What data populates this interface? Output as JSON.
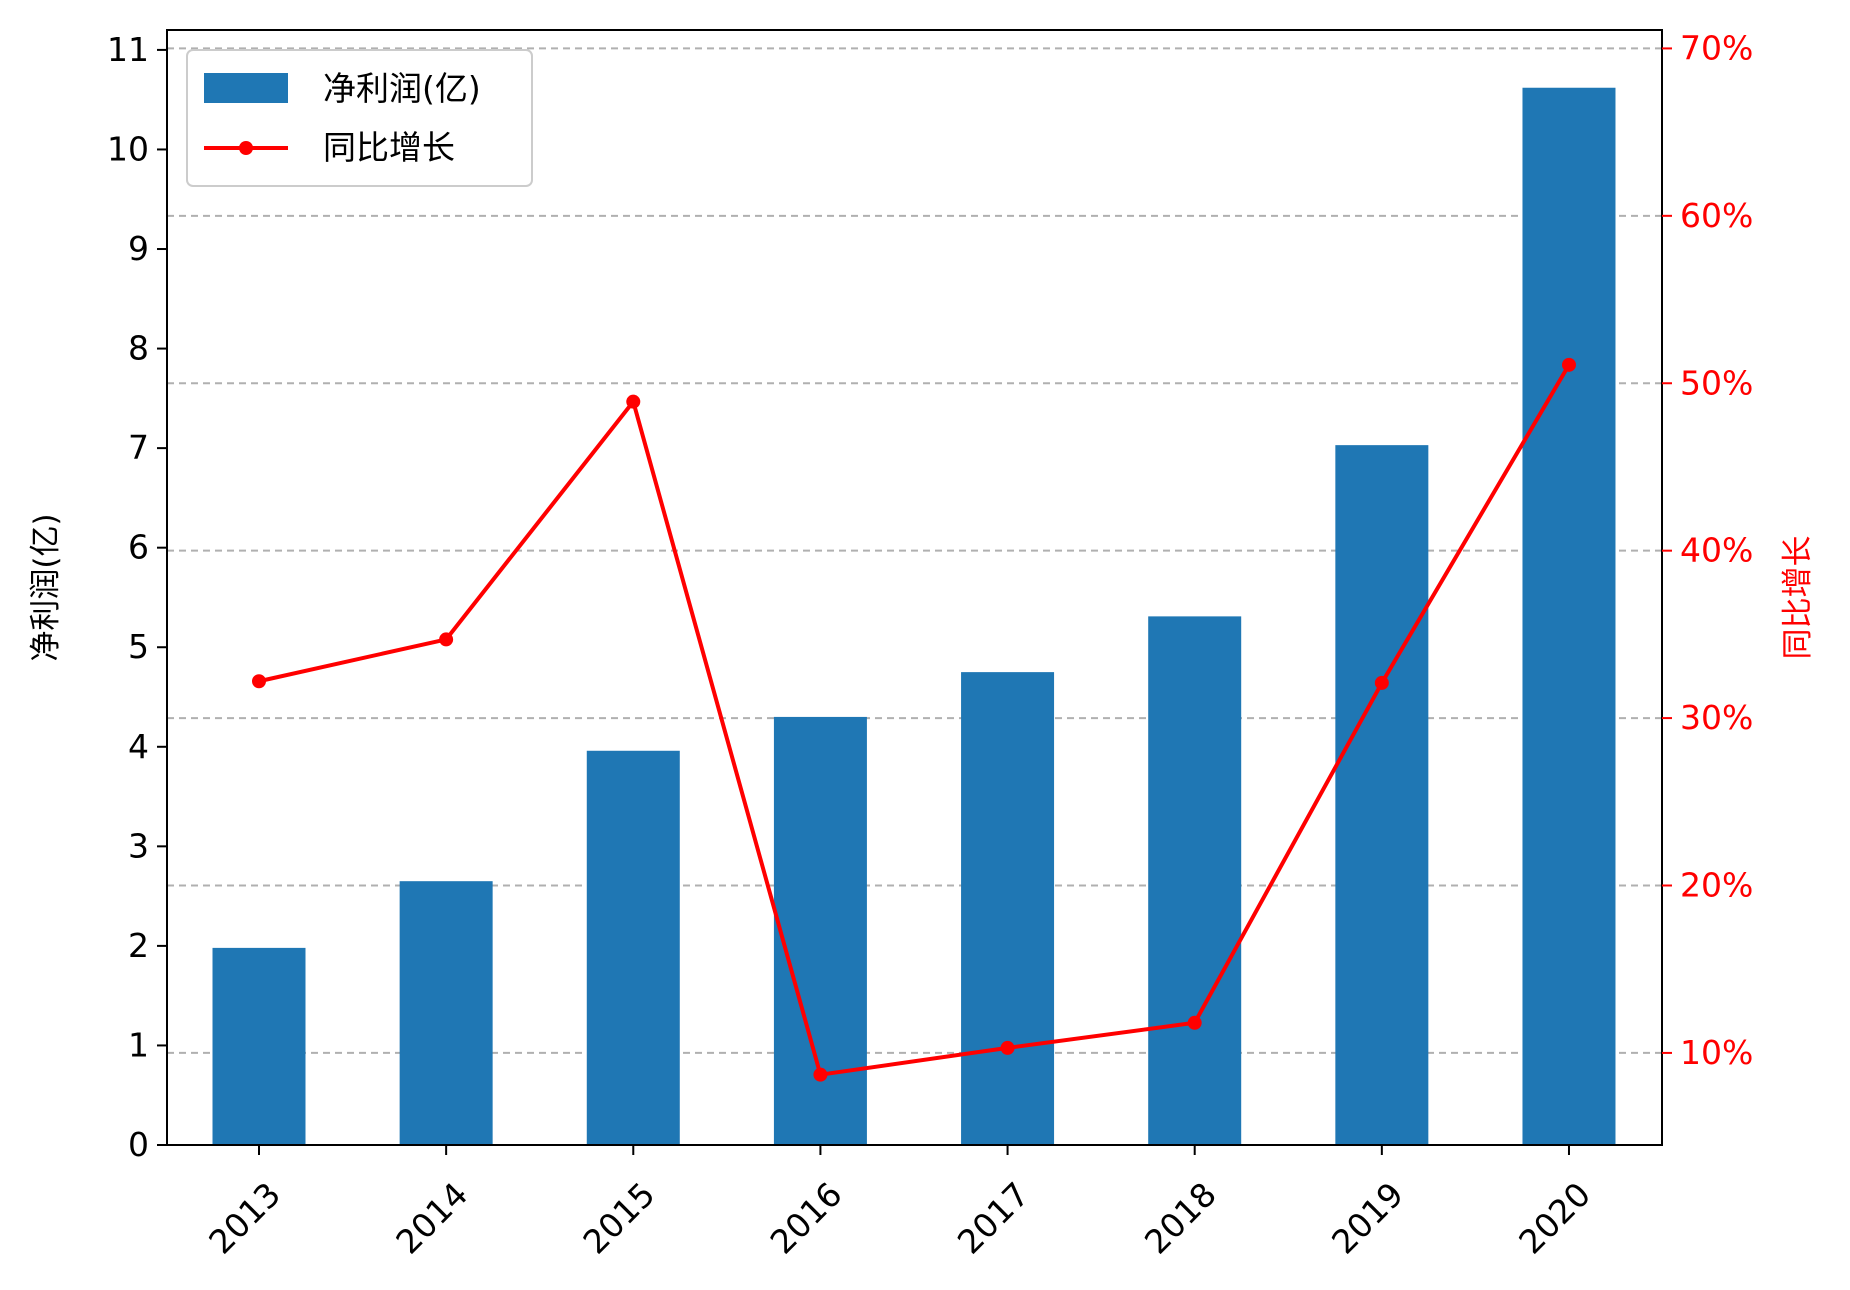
{
  "chart_data": {
    "type": "bar",
    "categories": [
      "2013",
      "2014",
      "2015",
      "2016",
      "2017",
      "2018",
      "2019",
      "2020"
    ],
    "series": [
      {
        "name": "净利润(亿)",
        "type": "bar",
        "axis": "left",
        "color": "#1f77b4",
        "values": [
          1.98,
          2.65,
          3.96,
          4.3,
          4.75,
          5.31,
          7.03,
          10.62
        ]
      },
      {
        "name": "同比增长",
        "type": "line",
        "axis": "right",
        "color": "#ff0000",
        "values": [
          32.2,
          34.7,
          48.9,
          8.7,
          10.3,
          11.8,
          32.1,
          51.1
        ],
        "unit": "%"
      }
    ],
    "xlabel": "",
    "ylabel": "净利润(亿)",
    "y2label": "同比增长",
    "ylim": [
      0,
      11.2
    ],
    "y2lim": [
      4.5,
      71.1
    ],
    "yticks": [
      0,
      1,
      2,
      3,
      4,
      5,
      6,
      7,
      8,
      9,
      10,
      11
    ],
    "y2ticks": [
      "10%",
      "20%",
      "30%",
      "40%",
      "50%",
      "60%",
      "70%"
    ],
    "grid": "horizontal dashed, right axis",
    "legend_position": "top-left"
  }
}
